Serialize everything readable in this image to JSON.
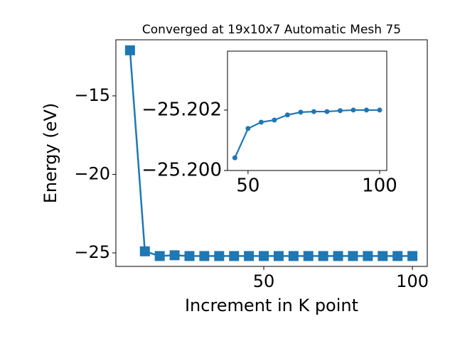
{
  "chart_data": [
    {
      "type": "line",
      "title": "Converged at 19x10x7 Automatic Mesh 75",
      "x_label": "Increment in K point",
      "y_label": "Energy (eV)",
      "x": [
        5,
        10,
        15,
        20,
        25,
        30,
        35,
        40,
        45,
        50,
        55,
        60,
        65,
        70,
        75,
        80,
        85,
        90,
        95,
        100
      ],
      "series": [
        {
          "color": "#1f77b4",
          "marker": "square",
          "values": [
            -12.1,
            -24.9,
            -25.2,
            -25.15,
            -25.2,
            -25.2,
            -25.2,
            -25.2,
            -25.2,
            -25.2,
            -25.2,
            -25.2,
            -25.2,
            -25.2,
            -25.2,
            -25.2,
            -25.2,
            -25.2,
            -25.2,
            -25.2
          ]
        }
      ],
      "xlim": [
        0.25,
        105
      ],
      "ylim": [
        -25.86,
        -11.43
      ],
      "xticks": [
        50,
        100
      ],
      "yticks": [
        {
          "value": -25,
          "label": "−25"
        },
        {
          "value": -20,
          "label": "−20"
        },
        {
          "value": -15,
          "label": "−15"
        }
      ]
    },
    {
      "type": "line",
      "x": [
        45,
        50,
        55,
        60,
        65,
        70,
        75,
        80,
        85,
        90,
        95,
        100
      ],
      "series": [
        {
          "color": "#1f77b4",
          "marker": "circle",
          "values": [
            -25.20042,
            -25.20139,
            -25.2016,
            -25.20167,
            -25.20184,
            -25.20193,
            -25.20195,
            -25.20195,
            -25.20198,
            -25.202,
            -25.202,
            -25.202
          ]
        }
      ],
      "xlim": [
        42.2,
        102.7
      ],
      "ylim": [
        -25.2,
        -25.20395
      ],
      "xticks": [
        50,
        100
      ],
      "yticks": [
        {
          "value": -25.202,
          "label": "−25.202"
        },
        {
          "value": -25.2,
          "label": "−25.200"
        }
      ]
    }
  ]
}
